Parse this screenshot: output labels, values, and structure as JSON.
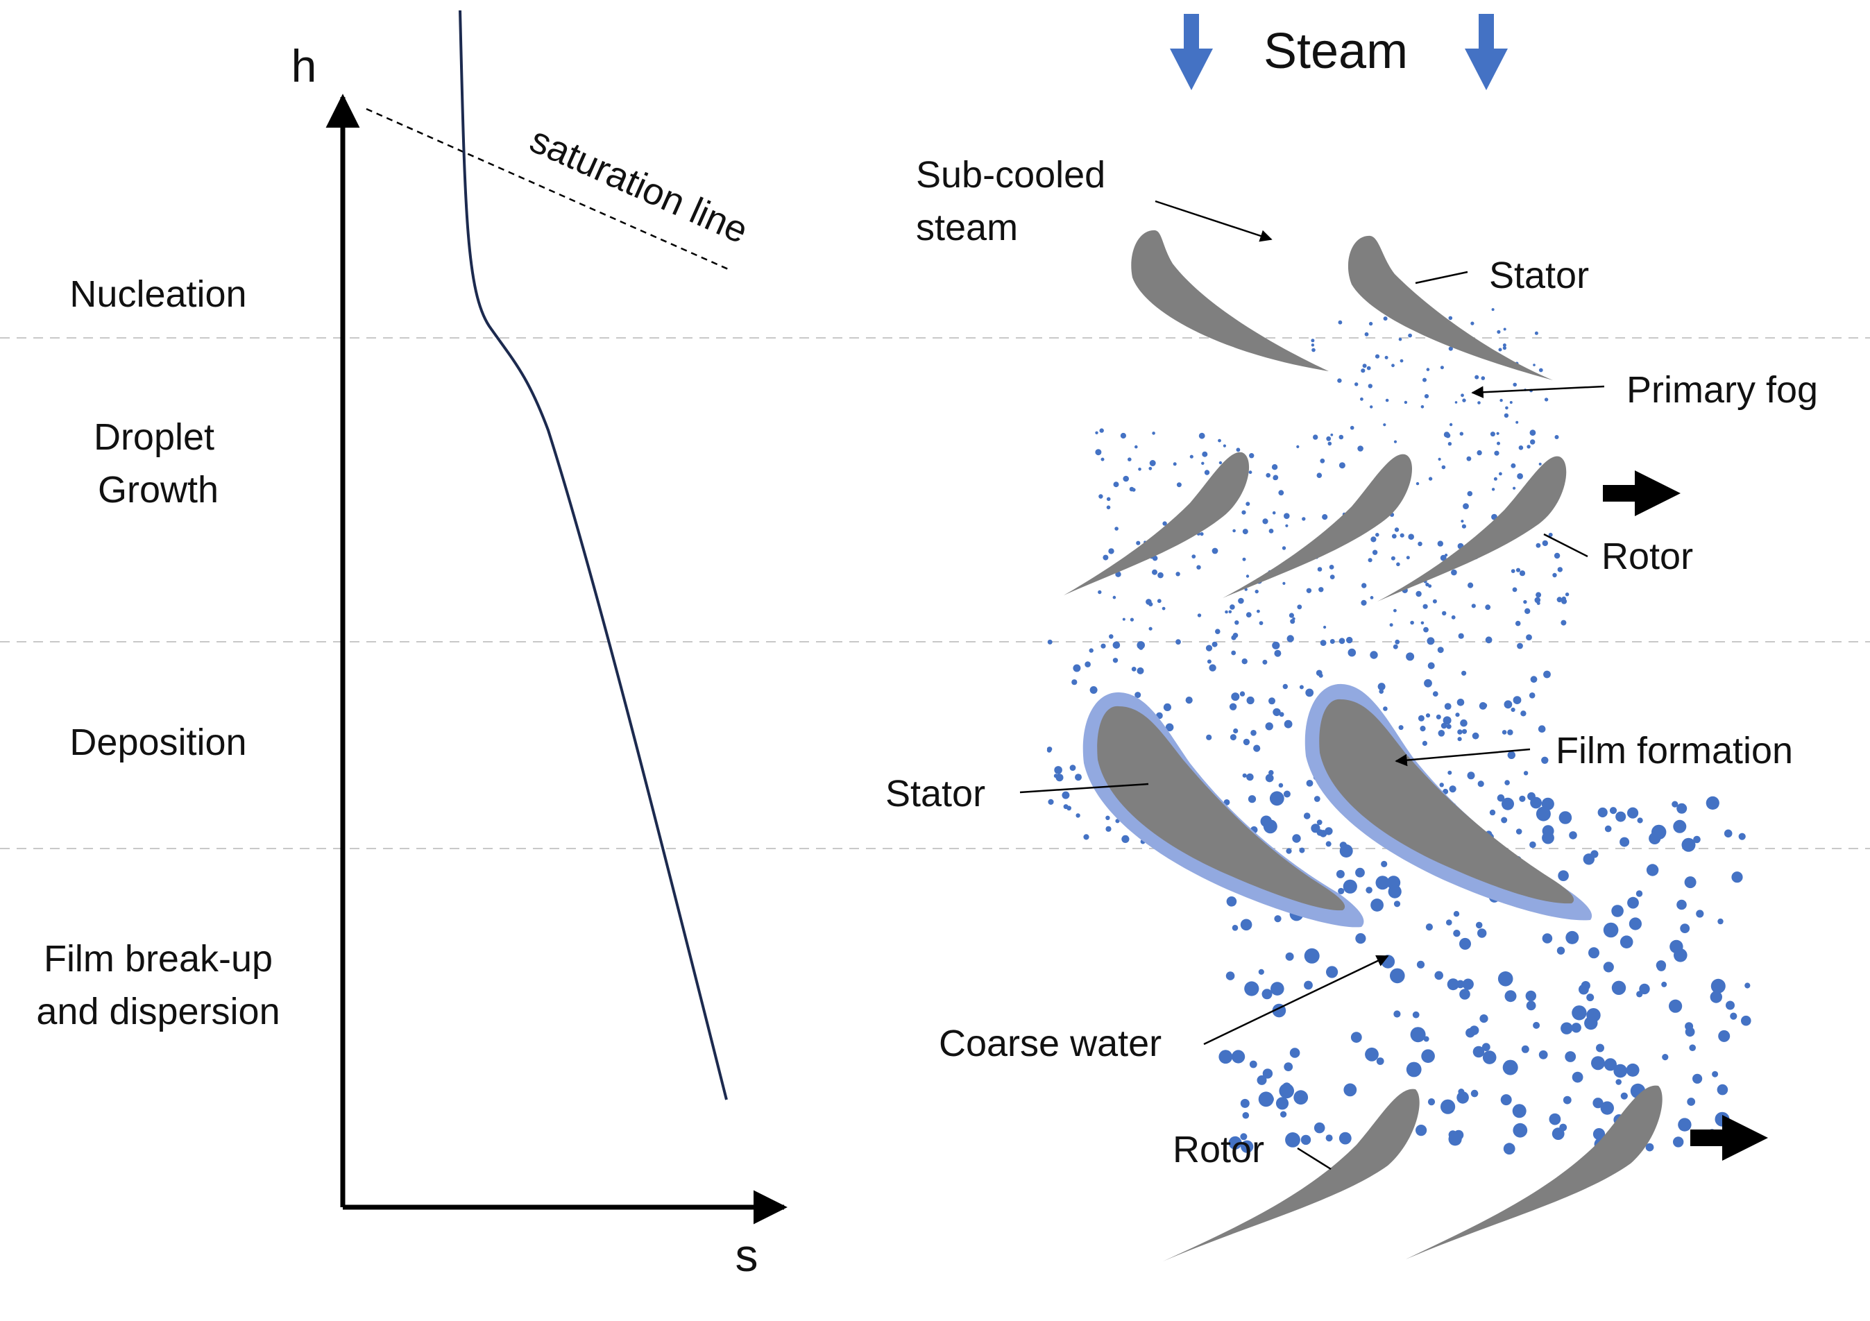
{
  "hs_chart": {
    "y_axis_label": "h",
    "x_axis_label": "s",
    "saturation_label": "saturation line"
  },
  "stages": [
    {
      "lines": [
        "Nucleation"
      ]
    },
    {
      "lines": [
        "Droplet",
        "Growth"
      ]
    },
    {
      "lines": [
        "Deposition"
      ]
    },
    {
      "lines": [
        "Film break-up",
        "and dispersion"
      ]
    }
  ],
  "turbine": {
    "title": "Steam",
    "subcooled_label": [
      "Sub-cooled",
      "steam"
    ],
    "stator_top_label": "Stator",
    "primary_fog_label": "Primary fog",
    "rotor_mid_label": "Rotor",
    "film_formation_label": "Film formation",
    "stator_mid_label": "Stator",
    "coarse_water_label": "Coarse water",
    "rotor_bottom_label": "Rotor"
  },
  "colors": {
    "curve": "#1c2a4f",
    "blade": "#7f7f7f",
    "film": "#92a9e0",
    "droplet": "#4472c4",
    "flow_arrow": "#4472c4",
    "divider": "#c8c8c8",
    "axis": "#000000"
  },
  "icons": {
    "steam_arrows": "down-arrow-icon",
    "motion_arrows": "right-arrow-icon"
  }
}
